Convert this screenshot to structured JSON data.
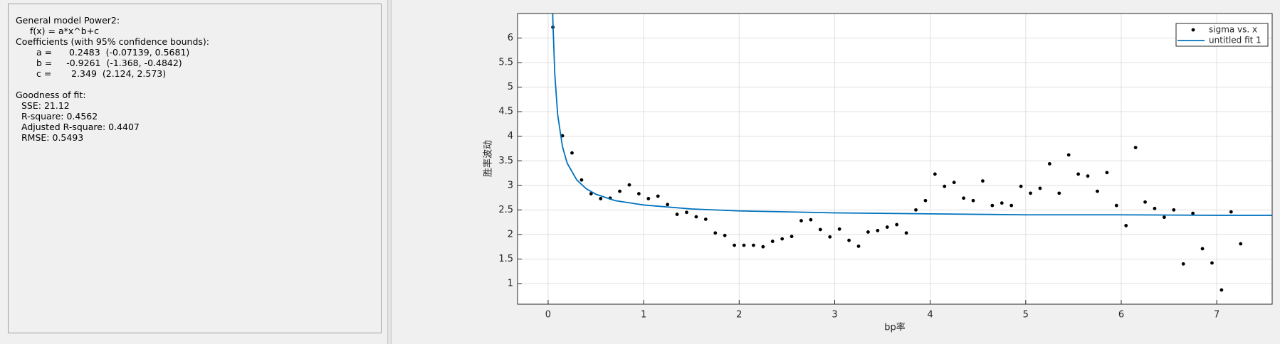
{
  "results": {
    "lines": [
      "General model Power2:",
      "f(x) = a*x^b+c",
      "Coefficients (with 95% confidence bounds):",
      "a =      0.2483  (-0.07139, 0.5681)",
      "b =     -0.9261  (-1.368, -0.4842)",
      "c =       2.349  (2.124, 2.573)",
      "Goodness of fit:",
      "SSE: 21.12",
      "R-square: 0.4562",
      "Adjusted R-square: 0.4407",
      "RMSE: 0.5493"
    ]
  },
  "chart_data": {
    "type": "scatter",
    "xlabel": "bp率",
    "ylabel": "胜率波动",
    "xlim": [
      -0.32,
      7.58
    ],
    "ylim": [
      0.58,
      6.5
    ],
    "xticks": [
      0,
      1,
      2,
      3,
      4,
      5,
      6,
      7
    ],
    "yticks": [
      1,
      1.5,
      2,
      2.5,
      3,
      3.5,
      4,
      4.5,
      5,
      5.5,
      6
    ],
    "grid": true,
    "legend": "upper right",
    "series": [
      {
        "name": "sigma vs. x",
        "type": "scatter",
        "color": "#000000",
        "x": [
          0.05,
          0.15,
          0.25,
          0.35,
          0.45,
          0.55,
          0.65,
          0.75,
          0.85,
          0.95,
          1.05,
          1.15,
          1.25,
          1.35,
          1.45,
          1.55,
          1.65,
          1.75,
          1.85,
          1.95,
          2.05,
          2.15,
          2.25,
          2.35,
          2.45,
          2.55,
          2.65,
          2.75,
          2.85,
          2.95,
          3.05,
          3.15,
          3.25,
          3.35,
          3.45,
          3.55,
          3.65,
          3.75,
          3.85,
          3.95,
          4.05,
          4.15,
          4.25,
          4.35,
          4.45,
          4.55,
          4.65,
          4.75,
          4.85,
          4.95,
          5.05,
          5.15,
          5.25,
          5.35,
          5.45,
          5.55,
          5.65,
          5.75,
          5.85,
          5.95,
          6.05,
          6.15,
          6.25,
          6.35,
          6.45,
          6.55,
          6.65,
          6.75,
          6.85,
          6.95,
          7.05,
          7.15,
          7.25
        ],
        "values": [
          6.22,
          4.01,
          3.66,
          3.11,
          2.83,
          2.73,
          2.74,
          2.88,
          3.01,
          2.83,
          2.73,
          2.78,
          2.61,
          2.41,
          2.45,
          2.36,
          2.31,
          2.03,
          1.98,
          1.78,
          1.78,
          1.78,
          1.75,
          1.86,
          1.91,
          1.96,
          2.28,
          2.3,
          2.1,
          1.95,
          2.11,
          1.88,
          1.76,
          2.05,
          2.08,
          2.15,
          2.2,
          2.03,
          2.5,
          2.69,
          3.23,
          2.98,
          3.06,
          2.74,
          2.69,
          3.09,
          2.59,
          2.64,
          2.59,
          2.98,
          2.84,
          2.94,
          3.44,
          2.84,
          3.62,
          3.23,
          3.19,
          2.88,
          3.26,
          2.59,
          2.18,
          3.77,
          2.66,
          2.53,
          2.35,
          2.5,
          1.4,
          2.43,
          1.71,
          1.42,
          0.87,
          2.46,
          1.81
        ]
      },
      {
        "name": "untitled fit 1",
        "type": "line",
        "color": "#0072bd",
        "x": [
          0.04,
          0.05,
          0.07,
          0.1,
          0.15,
          0.2,
          0.3,
          0.4,
          0.5,
          0.7,
          1,
          1.5,
          2,
          3,
          4,
          5,
          6,
          7,
          7.58
        ],
        "values": [
          7.24,
          6.33,
          5.26,
          4.44,
          3.79,
          3.45,
          3.11,
          2.93,
          2.82,
          2.69,
          2.6,
          2.52,
          2.48,
          2.44,
          2.42,
          2.4,
          2.4,
          2.39,
          2.39
        ]
      }
    ]
  }
}
